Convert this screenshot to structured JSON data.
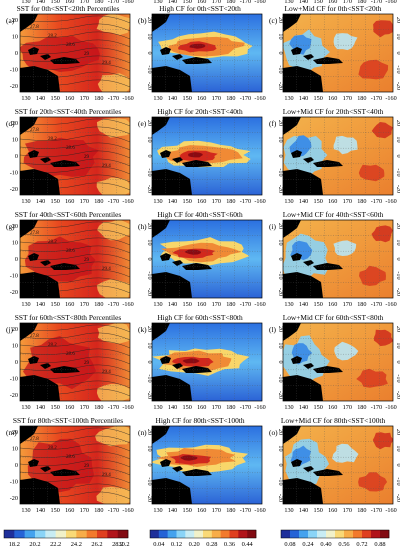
{
  "figure": {
    "columns": [
      {
        "key": "sst"
      },
      {
        "key": "high"
      },
      {
        "key": "lowmid"
      }
    ],
    "rows": [
      {
        "panels": [
          {
            "label": "(a)",
            "title": "SST for 0th<SST<20th Percentiles"
          },
          {
            "label": "(b)",
            "title": "High CF for 0th<SST<20th"
          },
          {
            "label": "(c)",
            "title": "Low+Mid CF for 0th<SST<20th"
          }
        ]
      },
      {
        "panels": [
          {
            "label": "(d)",
            "title": "SST for 20th<SST<40th Percentiles"
          },
          {
            "label": "(e)",
            "title": "High CF for 20th<SST<40th"
          },
          {
            "label": "(f)",
            "title": "Low+Mid CF for 20th<SST<40th"
          }
        ]
      },
      {
        "panels": [
          {
            "label": "(g)",
            "title": "SST for 40th<SST<60th Percentiles"
          },
          {
            "label": "(h)",
            "title": "High CF for 40th<SST<60th"
          },
          {
            "label": "(i)",
            "title": "Low+Mid CF for 40th<SST<60th"
          }
        ]
      },
      {
        "panels": [
          {
            "label": "(j)",
            "title": "SST for 60th<SST<80th Percentiles"
          },
          {
            "label": "(k)",
            "title": "High CF for 60th<SST<80th"
          },
          {
            "label": "(l)",
            "title": "Low+Mid CF for 60th<SST<80th"
          }
        ]
      },
      {
        "panels": [
          {
            "label": "(m)",
            "title": "SST for 80th<SST<100th Percentiles"
          },
          {
            "label": "(n)",
            "title": "High CF for 80th<SST<100th"
          },
          {
            "label": "(o)",
            "title": "Low+Mid CF for 80th<SST<100th"
          }
        ]
      }
    ],
    "lon_ticks": [
      "130",
      "140",
      "150",
      "160",
      "170",
      "180",
      "-170",
      "-160"
    ],
    "lat_ticks": [
      "20",
      "10",
      "0",
      "-10",
      "-20"
    ],
    "colorbars": [
      {
        "ticks": [
          "18.2",
          "20.2",
          "22.2",
          "24.2",
          "26.2",
          "28.2",
          "30.2"
        ],
        "colors": [
          "#1e2f9a",
          "#2563d6",
          "#44a2ee",
          "#8ad4f7",
          "#c8ecf3",
          "#f1f1c9",
          "#f9d977",
          "#f7ad49",
          "#f27a2c",
          "#df3f1f",
          "#b1141a",
          "#820a12"
        ]
      },
      {
        "ticks": [
          "0.04",
          "0.12",
          "0.20",
          "0.28",
          "0.36",
          "0.44"
        ],
        "colors": [
          "#1e2f9a",
          "#2563d6",
          "#44a2ee",
          "#8ad4f7",
          "#c8ecf3",
          "#f1f1c9",
          "#f9d977",
          "#f7ad49",
          "#f27a2c",
          "#df3f1f",
          "#b1141a",
          "#820a12"
        ]
      },
      {
        "ticks": [
          "0.08",
          "0.24",
          "0.40",
          "0.56",
          "0.72",
          "0.88"
        ],
        "colors": [
          "#1e2f9a",
          "#2563d6",
          "#44a2ee",
          "#8ad4f7",
          "#c8ecf3",
          "#f1f1c9",
          "#f9d977",
          "#f7ad49",
          "#f27a2c",
          "#df3f1f",
          "#b1141a",
          "#820a12"
        ]
      }
    ]
  }
}
